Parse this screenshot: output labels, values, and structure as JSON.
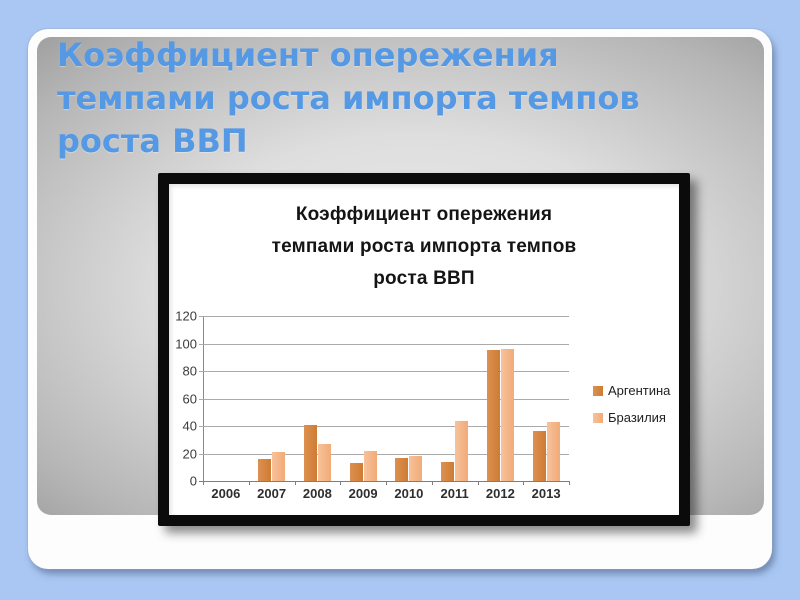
{
  "slide": {
    "title_lines": [
      "Коэффициент опережения",
      "темпами роста импорта темпов",
      "роста ВВП"
    ],
    "colors": {
      "background": "#a9c7f2",
      "title_text": "#5599e5",
      "panel_center": "#ededed",
      "panel_edge": "#a2a2a2",
      "chart_frame": "#0b0b0b"
    }
  },
  "chart_data": {
    "type": "bar",
    "title": "Коэффициент опережения темпами роста импорта темпов роста ВВП",
    "title_lines": [
      "Коэффициент опережения",
      "темпами роста импорта темпов",
      "роста ВВП"
    ],
    "categories": [
      "2006",
      "2007",
      "2008",
      "2009",
      "2010",
      "2011",
      "2012",
      "2013"
    ],
    "series": [
      {
        "name": "Аргентина",
        "color": "#cd7c33",
        "color_light": "#dd9050",
        "values": [
          0,
          16,
          41,
          13,
          17,
          14,
          95,
          36
        ]
      },
      {
        "name": "Бразилия",
        "color": "#f1ab78",
        "color_light": "#f8c29a",
        "values": [
          0,
          21,
          27,
          22,
          18,
          44,
          96,
          43
        ]
      }
    ],
    "xlabel": "",
    "ylabel": "",
    "ylim": [
      0,
      120
    ],
    "yticks": [
      120,
      100,
      80,
      60,
      40,
      20,
      0
    ],
    "grid": true,
    "legend_position": "right"
  }
}
